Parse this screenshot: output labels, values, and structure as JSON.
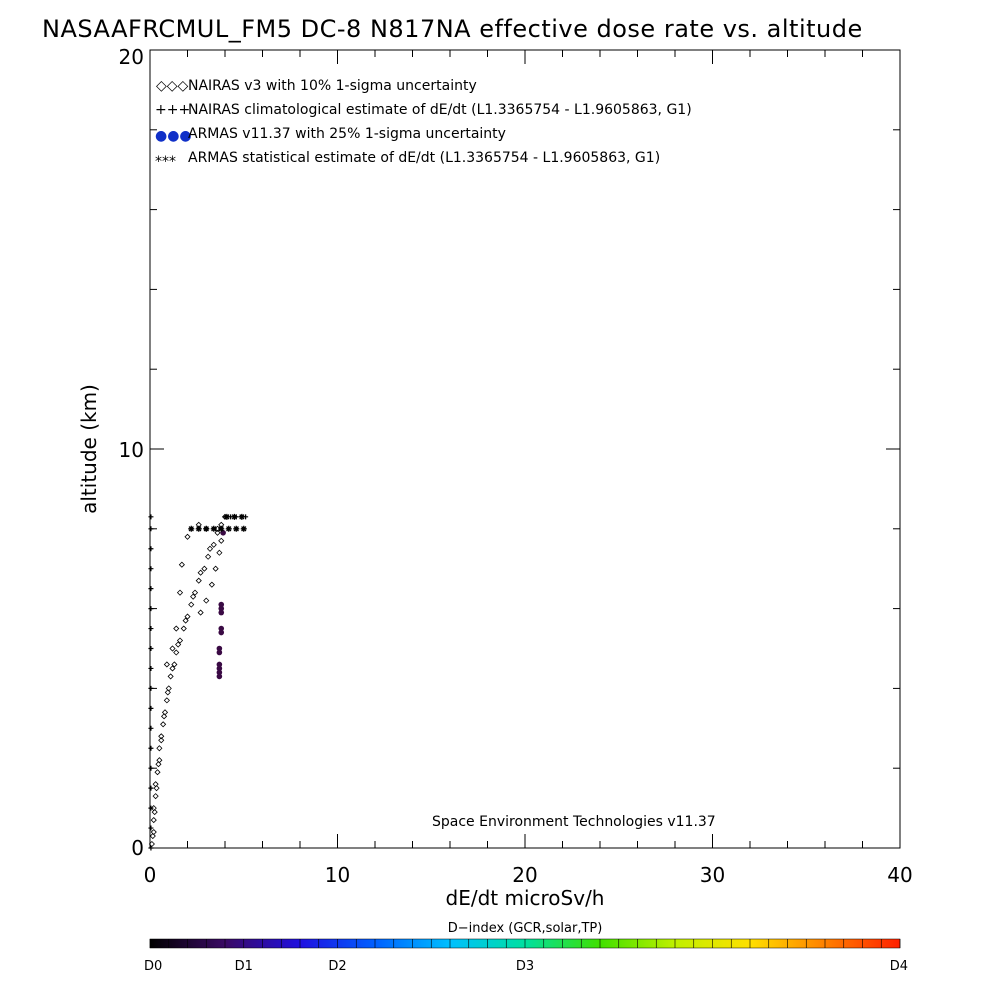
{
  "chart_data": {
    "type": "scatter",
    "title": "NASAAFRCMUL_FM5 DC-8   N817NA effective dose rate vs. altitude",
    "xlabel": "dE/dt microSv/h",
    "ylabel": "altitude (km)",
    "xlim": [
      0,
      40
    ],
    "ylim": [
      0,
      20
    ],
    "x_ticks": [
      "0",
      "10",
      "20",
      "30",
      "40"
    ],
    "y_ticks": [
      "0",
      "10",
      "20"
    ],
    "legend_placement": "top-left",
    "footer_note": "Space Environment Technologies v11.37",
    "legend": [
      {
        "symbol": "◇◇◇",
        "label": "NAIRAS v3 with 10% 1-sigma uncertainty",
        "color": "#000000"
      },
      {
        "symbol": "+++",
        "label": "NAIRAS climatological estimate of dE/dt (L1.3365754 - L1.9605863, G1)",
        "color": "#000000"
      },
      {
        "symbol": "●●●",
        "label": "ARMAS v11.37 with 25% 1-sigma uncertainty",
        "color": "#1030c8"
      },
      {
        "symbol": "***",
        "label": "ARMAS statistical estimate of dE/dt (L1.3365754 - L1.9605863, G1)",
        "color": "#000000"
      }
    ],
    "series": [
      {
        "name": "NAIRAS v3 with 10% 1-sigma uncertainty",
        "marker": "diamond",
        "color": "#000000",
        "points": [
          [
            0.1,
            0.1
          ],
          [
            0.2,
            0.4
          ],
          [
            0.2,
            0.7
          ],
          [
            0.2,
            1.0
          ],
          [
            0.3,
            1.3
          ],
          [
            0.3,
            1.6
          ],
          [
            0.4,
            1.9
          ],
          [
            0.5,
            2.2
          ],
          [
            0.5,
            2.5
          ],
          [
            0.6,
            2.8
          ],
          [
            0.7,
            3.1
          ],
          [
            0.8,
            3.4
          ],
          [
            0.9,
            3.7
          ],
          [
            1.0,
            4.0
          ],
          [
            1.1,
            4.3
          ],
          [
            1.3,
            4.6
          ],
          [
            1.4,
            4.9
          ],
          [
            1.6,
            5.2
          ],
          [
            1.8,
            5.5
          ],
          [
            2.0,
            5.8
          ],
          [
            2.2,
            6.1
          ],
          [
            2.4,
            6.4
          ],
          [
            2.6,
            6.7
          ],
          [
            2.9,
            7.0
          ],
          [
            3.1,
            7.3
          ],
          [
            3.4,
            7.6
          ],
          [
            3.6,
            7.9
          ],
          [
            3.8,
            8.1
          ],
          [
            4.0,
            8.3
          ],
          [
            0.15,
            0.3
          ],
          [
            0.25,
            0.9
          ],
          [
            0.35,
            1.5
          ],
          [
            0.45,
            2.1
          ],
          [
            0.6,
            2.7
          ],
          [
            0.75,
            3.3
          ],
          [
            0.95,
            3.9
          ],
          [
            1.2,
            4.5
          ],
          [
            1.5,
            5.1
          ],
          [
            1.9,
            5.7
          ],
          [
            2.3,
            6.3
          ],
          [
            2.7,
            6.9
          ],
          [
            3.2,
            7.5
          ],
          [
            3.6,
            8.0
          ],
          [
            1.4,
            5.5
          ],
          [
            1.6,
            6.4
          ],
          [
            1.7,
            7.1
          ],
          [
            2.0,
            7.8
          ],
          [
            2.6,
            8.1
          ],
          [
            3.0,
            8.0
          ],
          [
            0.9,
            4.6
          ],
          [
            1.2,
            5.0
          ],
          [
            2.7,
            5.9
          ],
          [
            3.0,
            6.2
          ],
          [
            3.3,
            6.6
          ],
          [
            3.5,
            7.0
          ],
          [
            3.7,
            7.4
          ],
          [
            3.8,
            7.7
          ]
        ]
      },
      {
        "name": "NAIRAS climatological estimate of dE/dt (L1.3365754 - L1.9605863, G1)",
        "marker": "plus",
        "color": "#000000",
        "points": [
          [
            0.05,
            0.0
          ],
          [
            0.05,
            0.5
          ],
          [
            0.05,
            1.0
          ],
          [
            0.05,
            1.5
          ],
          [
            0.05,
            2.0
          ],
          [
            0.05,
            2.5
          ],
          [
            0.05,
            3.0
          ],
          [
            0.05,
            3.5
          ],
          [
            0.05,
            4.0
          ],
          [
            0.05,
            4.5
          ],
          [
            0.05,
            5.0
          ],
          [
            0.05,
            5.5
          ],
          [
            0.05,
            6.0
          ],
          [
            0.05,
            6.5
          ],
          [
            0.05,
            7.0
          ],
          [
            0.05,
            7.5
          ],
          [
            0.05,
            8.0
          ],
          [
            0.05,
            8.3
          ],
          [
            4.0,
            8.3
          ],
          [
            4.3,
            8.3
          ],
          [
            4.6,
            8.3
          ],
          [
            4.9,
            8.3
          ],
          [
            5.1,
            8.3
          ]
        ]
      },
      {
        "name": "ARMAS v11.37 with 25% 1-sigma uncertainty",
        "marker": "filled-circle",
        "color": "#3a0a44",
        "points": [
          [
            3.7,
            4.3
          ],
          [
            3.7,
            4.4
          ],
          [
            3.7,
            4.5
          ],
          [
            3.7,
            4.6
          ],
          [
            3.7,
            4.9
          ],
          [
            3.7,
            5.0
          ],
          [
            3.8,
            5.4
          ],
          [
            3.8,
            5.5
          ],
          [
            3.8,
            5.9
          ],
          [
            3.8,
            6.0
          ],
          [
            3.8,
            6.1
          ],
          [
            3.9,
            7.9
          ]
        ]
      },
      {
        "name": "ARMAS statistical estimate of dE/dt (L1.3365754 - L1.9605863, G1)",
        "marker": "star",
        "color": "#000000",
        "points": [
          [
            2.2,
            8.0
          ],
          [
            2.6,
            8.0
          ],
          [
            3.0,
            8.0
          ],
          [
            3.4,
            8.0
          ],
          [
            3.8,
            8.0
          ],
          [
            4.2,
            8.0
          ],
          [
            4.6,
            8.0
          ],
          [
            5.0,
            8.0
          ],
          [
            4.1,
            8.3
          ],
          [
            4.5,
            8.3
          ],
          [
            4.9,
            8.3
          ]
        ]
      }
    ]
  },
  "colorbar": {
    "title": "D−index (GCR,solar,TP)",
    "labels": [
      "D0",
      "D1",
      "D2",
      "D3",
      "D4"
    ],
    "label_values": [
      0,
      0.5,
      1,
      2,
      4
    ],
    "range": [
      0,
      4
    ],
    "colors": [
      "#000000",
      "#3a0a64",
      "#2010e0",
      "#0060ff",
      "#00c0ff",
      "#00e0a0",
      "#40e000",
      "#c0f000",
      "#ffe000",
      "#ff8000",
      "#ff2000"
    ]
  }
}
